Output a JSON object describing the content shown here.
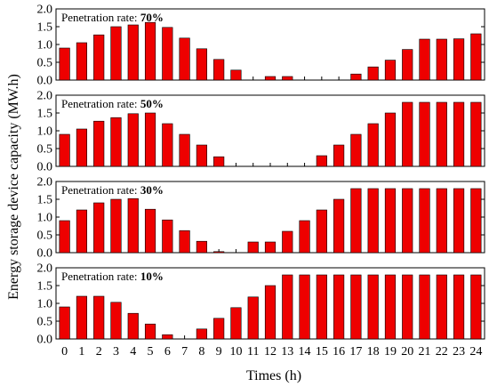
{
  "chart_data": {
    "type": "bar",
    "xlabel": "Times (h)",
    "ylabel": "Energy storage device capacity (MW.h)",
    "categories": [
      "0",
      "1",
      "2",
      "3",
      "4",
      "5",
      "6",
      "7",
      "8",
      "9",
      "10",
      "11",
      "12",
      "13",
      "14",
      "15",
      "16",
      "17",
      "18",
      "19",
      "20",
      "21",
      "22",
      "23",
      "24"
    ],
    "ylim": [
      0,
      2.0
    ],
    "yticks": [
      "0.0",
      "0.5",
      "1.0",
      "1.5",
      "2.0"
    ],
    "bar_color": "#ee0000",
    "panels": [
      {
        "label_prefix": "Penetration rate: ",
        "label_value": "70%",
        "values": [
          0.9,
          1.05,
          1.27,
          1.5,
          1.55,
          1.62,
          1.48,
          1.18,
          0.88,
          0.58,
          0.28,
          0.0,
          0.1,
          0.1,
          0.0,
          0.0,
          0.0,
          0.17,
          0.37,
          0.56,
          0.86,
          1.15,
          1.15,
          1.16,
          1.3
        ]
      },
      {
        "label_prefix": "Penetration rate: ",
        "label_value": "50%",
        "values": [
          0.9,
          1.05,
          1.27,
          1.37,
          1.48,
          1.5,
          1.2,
          0.9,
          0.6,
          0.27,
          0.0,
          0.0,
          0.0,
          0.0,
          0.0,
          0.3,
          0.6,
          0.9,
          1.2,
          1.5,
          1.8,
          1.8,
          1.8,
          1.8,
          1.8
        ]
      },
      {
        "label_prefix": "Penetration rate: ",
        "label_value": "30%",
        "values": [
          0.9,
          1.2,
          1.4,
          1.5,
          1.52,
          1.22,
          0.92,
          0.62,
          0.32,
          0.03,
          0.0,
          0.3,
          0.3,
          0.6,
          0.9,
          1.2,
          1.5,
          1.8,
          1.8,
          1.8,
          1.8,
          1.8,
          1.8,
          1.8,
          1.8
        ]
      },
      {
        "label_prefix": "Penetration rate: ",
        "label_value": "10%",
        "values": [
          0.9,
          1.2,
          1.2,
          1.03,
          0.72,
          0.42,
          0.12,
          0.0,
          0.28,
          0.58,
          0.88,
          1.18,
          1.5,
          1.8,
          1.8,
          1.8,
          1.8,
          1.8,
          1.8,
          1.8,
          1.8,
          1.8,
          1.8,
          1.8,
          1.8
        ]
      }
    ]
  }
}
